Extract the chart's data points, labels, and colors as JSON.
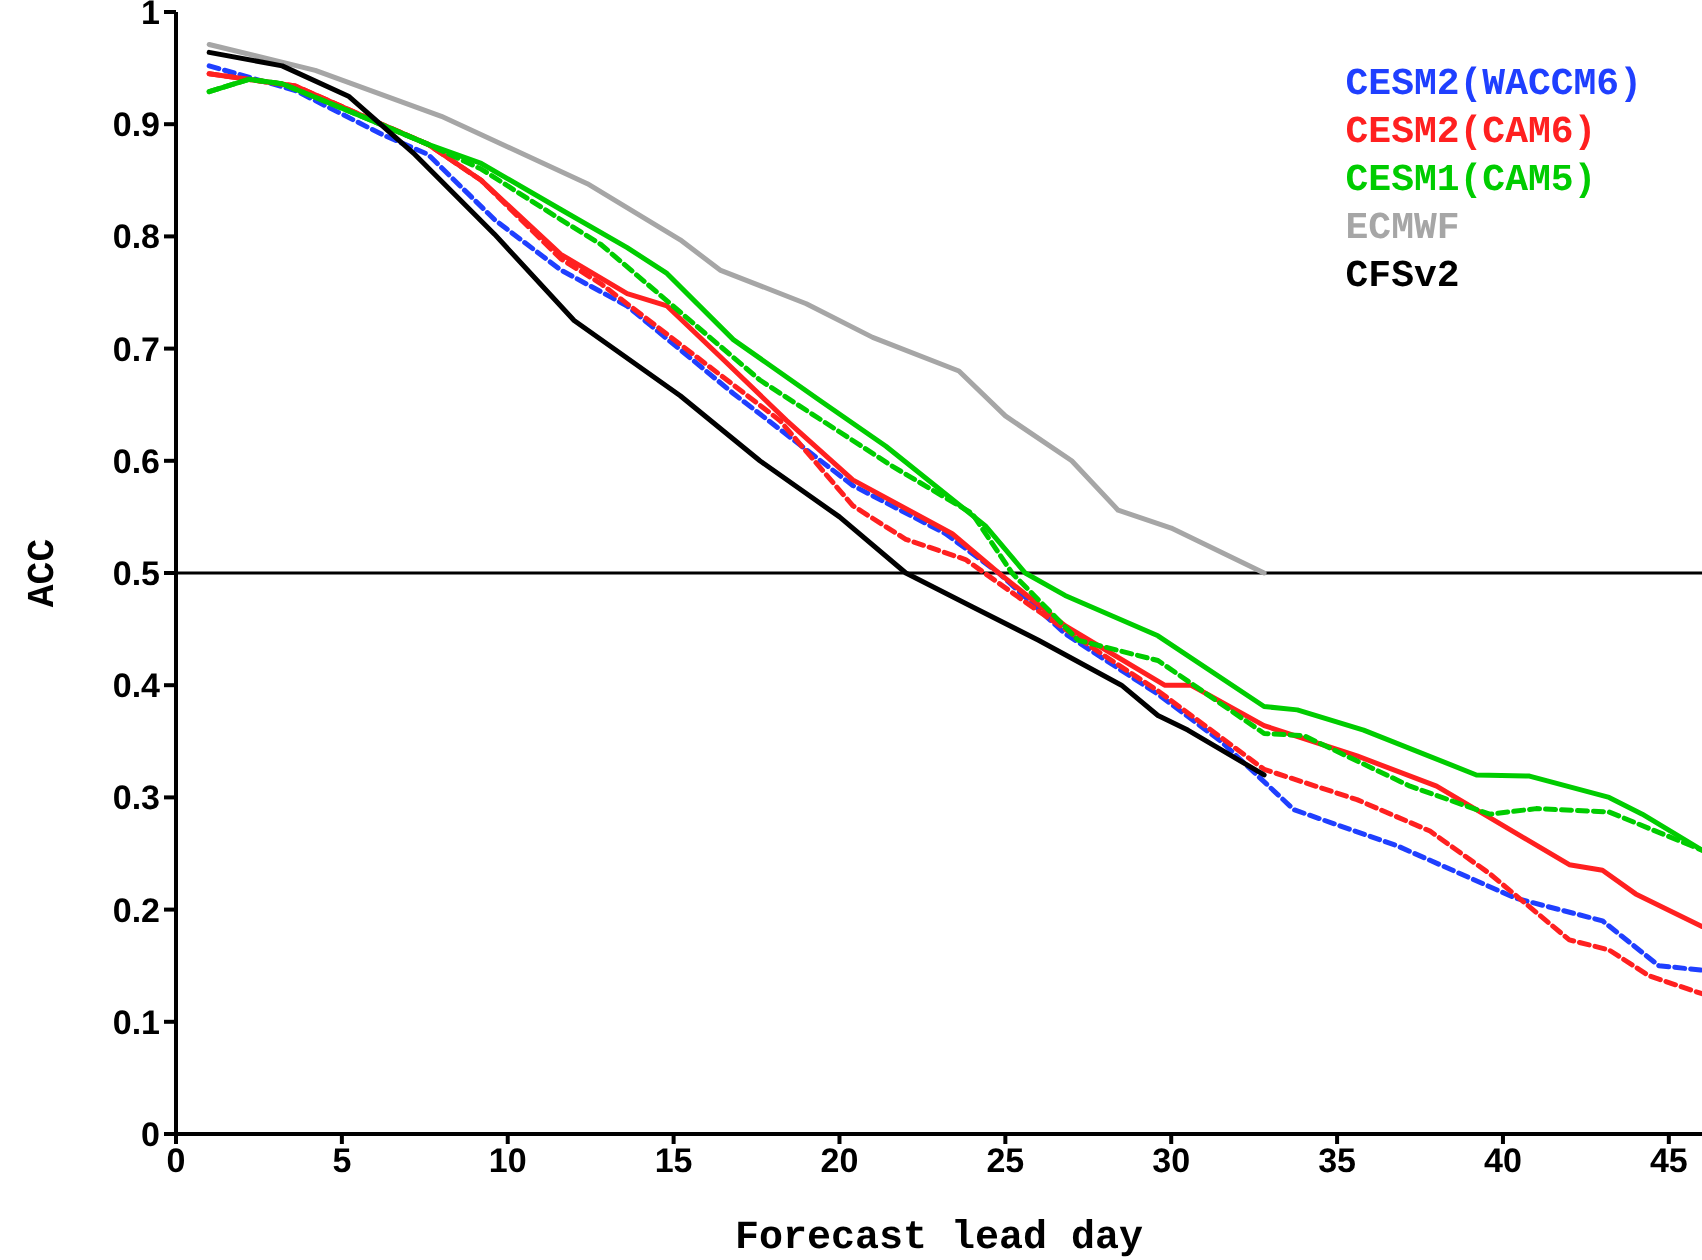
{
  "chart_data": {
    "type": "line",
    "xlabel": "Forecast lead day",
    "ylabel": "ACC",
    "xlim": [
      0,
      46
    ],
    "xticks": [
      0,
      5,
      10,
      15,
      20,
      25,
      30,
      35,
      40,
      45
    ],
    "ylim": [
      0,
      1
    ],
    "yticks": [
      0,
      0.1,
      0.2,
      0.3,
      0.4,
      0.5,
      0.6,
      0.7,
      0.8,
      0.9,
      1
    ],
    "legend": "top right",
    "marker": "none",
    "ref_lines": [
      {
        "axis": "y",
        "value": 0.5,
        "color": "#000000"
      }
    ],
    "series": [
      {
        "name": "CESM2(WACCM6)",
        "color": "#1f3fff",
        "line_style": "dashed",
        "x": [
          1,
          3.6,
          6.2,
          7.6,
          9.6,
          11.6,
          13.6,
          16.8,
          20.4,
          23.2,
          24.8,
          26.8,
          29.6,
          31.5,
          33.7,
          36.8,
          40.4,
          43,
          44.7,
          46
        ],
        "values": [
          0.952,
          0.93,
          0.891,
          0.873,
          0.815,
          0.77,
          0.738,
          0.66,
          0.578,
          0.535,
          0.5,
          0.446,
          0.392,
          0.35,
          0.289,
          0.257,
          0.21,
          0.19,
          0.15,
          0.146
        ]
      },
      {
        "name": "CESM2(CAM6)",
        "color": "#ff2020",
        "line_style": "solid",
        "x": [
          1,
          3.6,
          6.2,
          7.6,
          9.2,
          11.6,
          13.6,
          14.8,
          16.4,
          18.4,
          20.4,
          23.4,
          24.8,
          26.8,
          29.8,
          30.6,
          32.8,
          35.6,
          38,
          42,
          43,
          44,
          46
        ],
        "values": [
          0.945,
          0.934,
          0.9,
          0.882,
          0.85,
          0.784,
          0.749,
          0.738,
          0.693,
          0.636,
          0.583,
          0.535,
          0.5,
          0.453,
          0.4,
          0.4,
          0.364,
          0.337,
          0.31,
          0.24,
          0.235,
          0.214,
          0.185
        ]
      },
      {
        "color": "#ff2020",
        "line_style": "dashed",
        "x": [
          1,
          3.6,
          6.2,
          7.6,
          9.2,
          11.6,
          12.8,
          18.2,
          20.4,
          22,
          23.8,
          25.8,
          27.9,
          29.6,
          32.8,
          35.6,
          37.8,
          39.6,
          42,
          43.2,
          44.4,
          46
        ],
        "values": [
          0.945,
          0.934,
          0.9,
          0.882,
          0.85,
          0.78,
          0.758,
          0.636,
          0.56,
          0.53,
          0.512,
          0.47,
          0.428,
          0.395,
          0.325,
          0.298,
          0.27,
          0.232,
          0.173,
          0.164,
          0.141,
          0.125
        ]
      },
      {
        "name": "CESM1(CAM5)",
        "color": "#00cc00",
        "line_style": "solid",
        "x": [
          1,
          2.2,
          3.2,
          5.6,
          7.6,
          9.2,
          11.6,
          13.6,
          14.8,
          16.8,
          19.4,
          21.4,
          24.4,
          25.6,
          26.8,
          29.6,
          32.8,
          33.8,
          35.8,
          39.2,
          40.8,
          43.2,
          44.2,
          46
        ],
        "values": [
          0.929,
          0.94,
          0.936,
          0.907,
          0.882,
          0.865,
          0.824,
          0.79,
          0.767,
          0.708,
          0.654,
          0.613,
          0.542,
          0.5,
          0.48,
          0.444,
          0.381,
          0.378,
          0.36,
          0.32,
          0.319,
          0.3,
          0.285,
          0.253
        ]
      },
      {
        "color": "#00cc00",
        "line_style": "dashed",
        "x": [
          1,
          2.2,
          3.2,
          5.6,
          7.6,
          9.2,
          11.6,
          12.8,
          17.6,
          21.6,
          24,
          25.2,
          27.2,
          29.6,
          32.8,
          34,
          37.2,
          39.6,
          41,
          43.2,
          46
        ],
        "values": [
          0.929,
          0.94,
          0.936,
          0.907,
          0.882,
          0.86,
          0.815,
          0.793,
          0.672,
          0.595,
          0.553,
          0.5,
          0.44,
          0.422,
          0.357,
          0.355,
          0.31,
          0.285,
          0.29,
          0.287,
          0.253
        ]
      },
      {
        "name": "ECMWF",
        "color": "#a6a6a6",
        "line_style": "solid",
        "x": [
          1,
          4.2,
          8,
          12.4,
          15.2,
          16.4,
          19,
          21,
          23.6,
          25,
          27,
          28.4,
          30,
          32.8
        ],
        "values": [
          0.971,
          0.948,
          0.907,
          0.847,
          0.797,
          0.77,
          0.74,
          0.71,
          0.68,
          0.64,
          0.6,
          0.556,
          0.54,
          0.5
        ]
      },
      {
        "name": "CFSv2",
        "color": "#000000",
        "line_style": "solid",
        "x": [
          1,
          3.2,
          5.2,
          7.2,
          9.6,
          12,
          15.2,
          17.6,
          20,
          22,
          24,
          26,
          28.5,
          29.6,
          30.5,
          32.8
        ],
        "values": [
          0.964,
          0.952,
          0.925,
          0.873,
          0.802,
          0.725,
          0.658,
          0.6,
          0.55,
          0.5,
          0.47,
          0.44,
          0.4,
          0.373,
          0.36,
          0.32
        ]
      }
    ]
  }
}
